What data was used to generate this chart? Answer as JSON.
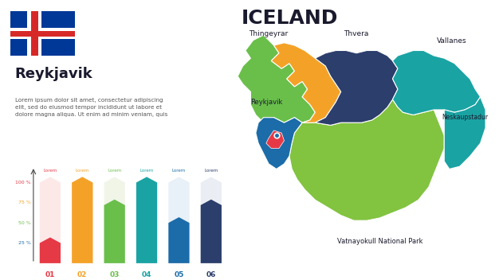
{
  "title": "ICELAND",
  "title_fontsize": 18,
  "city_title": "Reykjavik",
  "lorem_text": "Lorem ipsum dolor sit amet, consectetur adipiscing\nelit, sed do eiusmod tempor incididunt ut labore et\ndolore magna aliqua. Ut enim ad minim veniam, quis",
  "bar_categories": [
    "01",
    "02",
    "03",
    "04",
    "05",
    "06"
  ],
  "bar_values": [
    25,
    100,
    72,
    100,
    50,
    72
  ],
  "bar_bg_values": [
    100,
    100,
    100,
    100,
    100,
    100
  ],
  "bar_colors": [
    "#e63946",
    "#f4a227",
    "#6abf4b",
    "#1aa3a3",
    "#1b6ca8",
    "#2c3e6b"
  ],
  "bar_bg_colors": [
    "#fde8e8",
    "#fde8e8",
    "#f0f5e8",
    "#e0f0f0",
    "#e8f0f8",
    "#eaeef4"
  ],
  "ytick_labels": [
    "100 %",
    "75 %",
    "50 %",
    "25 %"
  ],
  "ytick_colors": [
    "#e63946",
    "#f4a227",
    "#6abf4b",
    "#1b6ca8"
  ],
  "xlabel_color": [
    "#e63946",
    "#f4a227",
    "#6abf4b",
    "#1aa3a3",
    "#1b6ca8",
    "#2c3e6b"
  ],
  "top_label": "Lorem",
  "bg_color": "#ffffff",
  "flag_blue": "#003897",
  "flag_red": "#d72828",
  "flag_white": "#ffffff",
  "map_colors": {
    "thingeyrar": "#6abf4b",
    "orange_region": "#f4a227",
    "thvera": "#2c3e6b",
    "vallanes": "#1aa3a3",
    "vatnajokull": "#82c340",
    "reykjavik_region": "#1b6ca8",
    "reykjavik_city": "#e63946"
  }
}
